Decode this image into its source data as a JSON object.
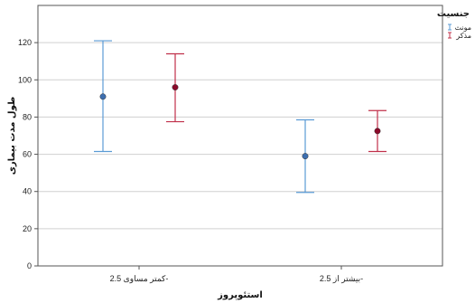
{
  "chart_data": {
    "type": "errorbar",
    "xlabel": "استئوپروز",
    "ylabel": "طول مدت بیماری",
    "ylim": [
      0,
      140
    ],
    "yticks": [
      0,
      20,
      40,
      60,
      80,
      100,
      120
    ],
    "categories": [
      "کمتر مساوی 2.5-",
      "بیشتر از 2.5-"
    ],
    "legend": {
      "title": "جنسیت",
      "position": "top-right"
    },
    "grid": "horizontal",
    "series": [
      {
        "name": "مونث",
        "color": "#5b9bd5",
        "markerColor": "#3d6fb0",
        "points": [
          {
            "category": "کمتر مساوی 2.5-",
            "mean": 91,
            "lower": 61.5,
            "upper": 121
          },
          {
            "category": "بیشتر از 2.5-",
            "mean": 59,
            "lower": 39.5,
            "upper": 78.5
          }
        ]
      },
      {
        "name": "مذکر",
        "color": "#c0304a",
        "markerColor": "#8b0a2a",
        "points": [
          {
            "category": "کمتر مساوی 2.5-",
            "mean": 96,
            "lower": 77.5,
            "upper": 114
          },
          {
            "category": "بیشتر از 2.5-",
            "mean": 72.5,
            "lower": 61.5,
            "upper": 83.5
          }
        ]
      }
    ]
  }
}
